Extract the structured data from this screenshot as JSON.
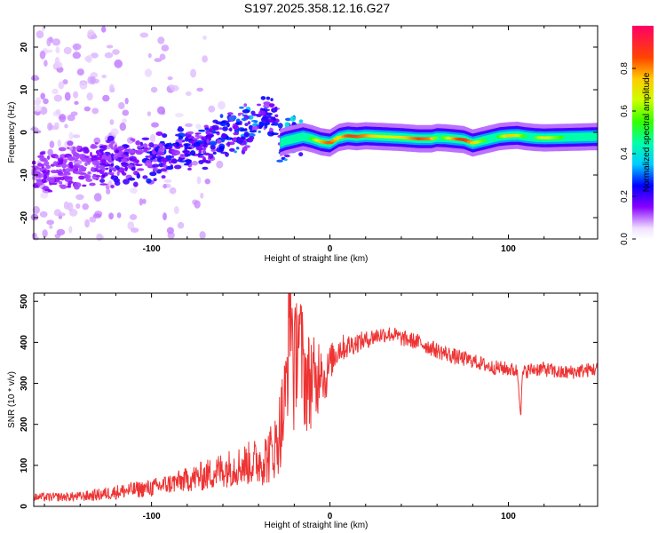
{
  "chart_data": [
    {
      "type": "heatmap",
      "title": "S197.2025.358.12.16.G27",
      "xlabel": "Height of straight line (km)",
      "ylabel": "Frequency (Hz)",
      "xlim": [
        -166,
        150
      ],
      "ylim": [
        -25,
        25
      ],
      "xticks": [
        "-100",
        "0",
        "100"
      ],
      "yticks": [
        "20",
        "10",
        "0",
        "-10",
        "-20"
      ],
      "xtick_values": [
        -100,
        0,
        100
      ],
      "ytick_values": [
        20,
        10,
        0,
        -10,
        -20
      ],
      "colorbar": {
        "label": "Normalized spectral amplitude",
        "range": [
          0,
          1
        ],
        "ticks": [
          "0.0",
          "0.2",
          "0.4",
          "0.6",
          "0.8"
        ],
        "tick_values": [
          0.0,
          0.2,
          0.4,
          0.6,
          0.8
        ]
      },
      "ridge": {
        "x": [
          -160,
          -150,
          -140,
          -130,
          -120,
          -110,
          -100,
          -90,
          -80,
          -70,
          -60,
          -50,
          -45,
          -40,
          -35,
          -30,
          -28,
          -25,
          -20,
          -15,
          -10,
          -5,
          0,
          5,
          10,
          15,
          20,
          30,
          40,
          50,
          57,
          60,
          65,
          70,
          75,
          80,
          85,
          90,
          95,
          100,
          105,
          110,
          115,
          120,
          130,
          140,
          148
        ],
        "y": [
          -9,
          -8.5,
          -8,
          -7.5,
          -7,
          -6.5,
          -6,
          -5,
          -4,
          -3,
          -1.5,
          1,
          2,
          3,
          4.5,
          4,
          -2.5,
          -2,
          -1.5,
          -1,
          -1.5,
          -2.2,
          -2.5,
          -1.2,
          -0.8,
          -1,
          -0.8,
          -1,
          -1.2,
          -1.5,
          -1.5,
          -1.2,
          -1.3,
          -1.5,
          -1.7,
          -2.5,
          -2,
          -1.5,
          -1,
          -0.8,
          -0.7,
          -1,
          -1.2,
          -1.3,
          -1.2,
          -1.1,
          -1
        ],
        "amplitude": [
          0.15,
          0.15,
          0.15,
          0.18,
          0.2,
          0.22,
          0.25,
          0.25,
          0.25,
          0.25,
          0.28,
          0.3,
          0.32,
          0.3,
          0.28,
          0.25,
          0.3,
          0.35,
          0.45,
          0.5,
          0.55,
          0.75,
          0.85,
          0.7,
          0.85,
          0.85,
          0.8,
          0.65,
          0.7,
          0.85,
          0.8,
          0.5,
          0.6,
          0.8,
          0.9,
          0.75,
          0.6,
          0.45,
          0.55,
          0.75,
          0.7,
          0.5,
          0.55,
          0.7,
          0.55,
          0.5,
          0.45
        ]
      }
    },
    {
      "type": "line",
      "xlabel": "Height of straight line (km)",
      "ylabel": "SNR (10 * v/v)",
      "xlim": [
        -166,
        150
      ],
      "ylim": [
        0,
        520
      ],
      "xticks": [
        "-100",
        "0",
        "100"
      ],
      "yticks": [
        "0",
        "100",
        "200",
        "300",
        "400",
        "500"
      ],
      "xtick_values": [
        -100,
        0,
        100
      ],
      "ytick_values": [
        0,
        100,
        200,
        300,
        400,
        500
      ],
      "color": "#ee3333",
      "series": [
        {
          "name": "SNR",
          "x": [
            -166,
            -150,
            -140,
            -130,
            -120,
            -110,
            -100,
            -90,
            -80,
            -70,
            -60,
            -50,
            -45,
            -40,
            -35,
            -30,
            -25,
            -22,
            -20,
            -18,
            -15,
            -12,
            -10,
            -8,
            -5,
            -3,
            0,
            5,
            10,
            15,
            20,
            25,
            30,
            35,
            40,
            50,
            60,
            70,
            80,
            90,
            100,
            105,
            107,
            108,
            110,
            115,
            120,
            130,
            140,
            150
          ],
          "y": [
            22,
            23,
            24,
            28,
            35,
            40,
            45,
            55,
            65,
            75,
            90,
            100,
            105,
            110,
            120,
            150,
            250,
            520,
            300,
            450,
            330,
            300,
            320,
            280,
            370,
            300,
            350,
            385,
            390,
            400,
            405,
            415,
            420,
            420,
            410,
            400,
            380,
            365,
            355,
            340,
            335,
            330,
            230,
            325,
            330,
            335,
            335,
            325,
            330,
            335
          ],
          "noise_amplitude": [
            10,
            11,
            12,
            15,
            18,
            20,
            22,
            25,
            30,
            38,
            45,
            50,
            55,
            60,
            70,
            80,
            140,
            160,
            160,
            150,
            140,
            130,
            120,
            110,
            80,
            60,
            45,
            35,
            30,
            25,
            22,
            22,
            20,
            20,
            20,
            20,
            20,
            20,
            18,
            18,
            18,
            18,
            18,
            18,
            18,
            18,
            18,
            18,
            18,
            18
          ]
        }
      ]
    }
  ]
}
